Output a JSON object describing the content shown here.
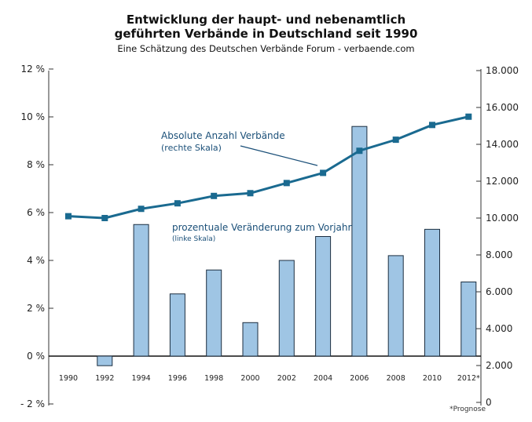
{
  "chart_data": {
    "type": "bar+line",
    "title": "Entwicklung der haupt- und nebenamtlich",
    "title_line2": "geführten Verbände in Deutschland seit 1990",
    "subtitle": "Eine Schätzung des Deutschen Verbände Forum - verbaende.com",
    "categories": [
      "1990",
      "1992",
      "1994",
      "1996",
      "1998",
      "2000",
      "2002",
      "2004",
      "2006",
      "2008",
      "2010",
      "2012*"
    ],
    "footnote": "*Prognose",
    "y_left": {
      "ticks": [
        -2,
        0,
        2,
        4,
        6,
        8,
        10,
        12
      ],
      "tick_labels": [
        "- 2 %",
        "0 %",
        "2 %",
        "4 %",
        "6 %",
        "8 %",
        "10 %",
        "12 %"
      ],
      "range": [
        -2,
        12
      ]
    },
    "y_right": {
      "ticks": [
        0,
        2000,
        4000,
        6000,
        8000,
        10000,
        12000,
        14000,
        16000,
        18000
      ],
      "tick_labels": [
        "0",
        "2.000",
        "4.000",
        "6.000",
        "8.000",
        "10.000",
        "12.000",
        "14.000",
        "16.000",
        "18.000"
      ],
      "range": [
        0,
        18000
      ]
    },
    "series": [
      {
        "name": "prozentuale Veränderung zum Vorjahr",
        "name_note": "(linke Skala)",
        "type": "bar",
        "axis": "left",
        "color": "#9fc5e4",
        "values": [
          0,
          -0.4,
          5.5,
          2.6,
          3.6,
          1.4,
          4.0,
          5.0,
          9.6,
          4.2,
          5.3,
          3.1
        ]
      },
      {
        "name": "Absolute Anzahl Verbände",
        "name_note": "(rechte Skala)",
        "type": "line",
        "axis": "right",
        "color": "#1a6a90",
        "values": [
          10100,
          10000,
          10500,
          10800,
          11200,
          11350,
          11900,
          12450,
          13650,
          14250,
          15050,
          15500
        ]
      }
    ]
  }
}
